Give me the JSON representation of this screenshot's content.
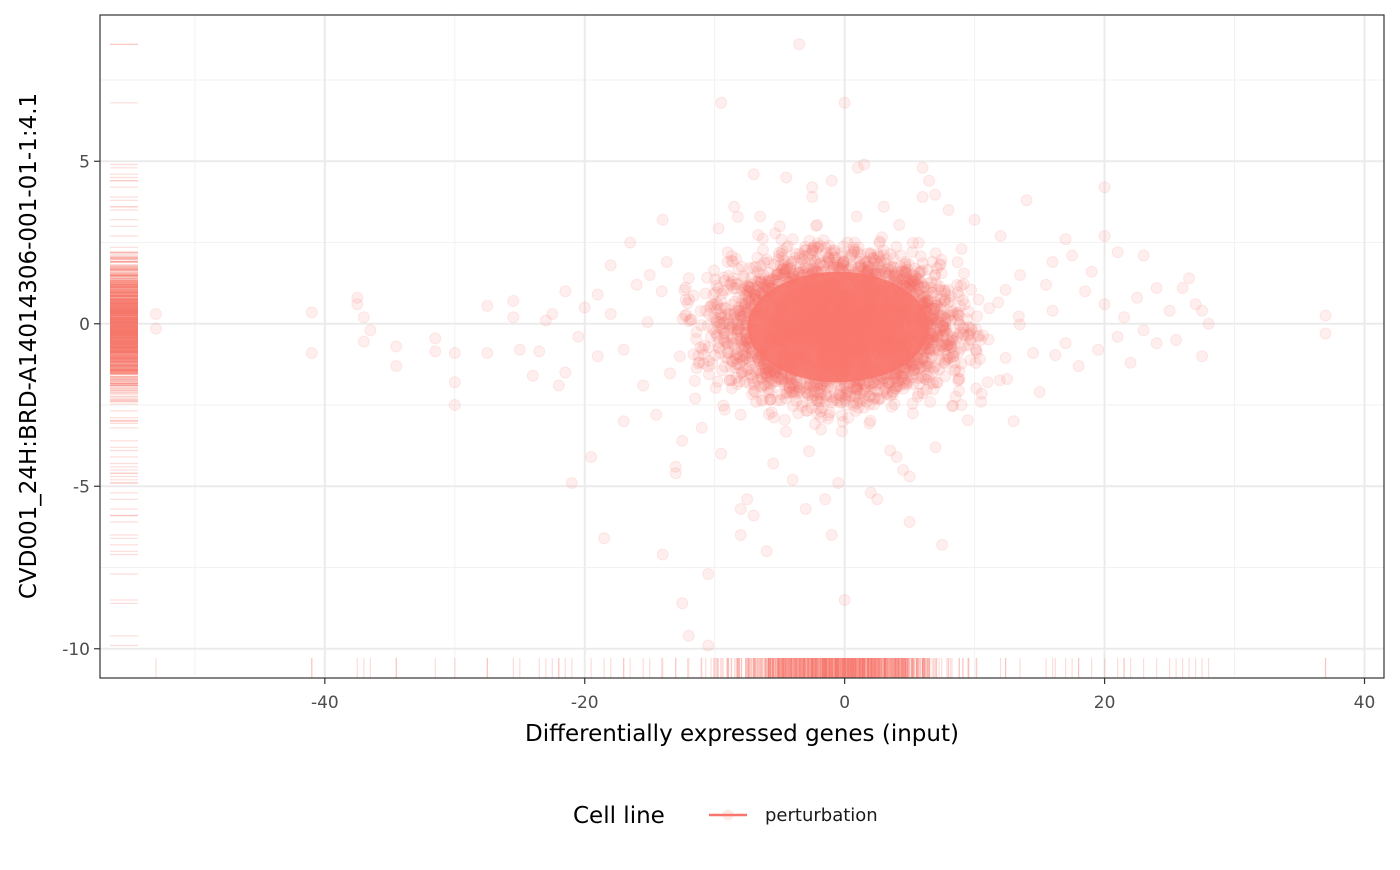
{
  "chart_data": {
    "type": "scatter",
    "title": "",
    "xlabel": "Differentially expressed genes (input)",
    "ylabel": "CVD001_24H:BRD-A14014306-001-01-1:4.1",
    "xlim": [
      -57.3,
      41.5
    ],
    "ylim": [
      -10.9,
      9.5
    ],
    "x_ticks": [
      -40,
      -20,
      0,
      20,
      40
    ],
    "x_tick_labels": [
      "-40",
      "-20",
      "0",
      "20",
      "40"
    ],
    "x_minor_ticks": [
      -50,
      -30,
      -10,
      10,
      30
    ],
    "y_ticks": [
      -10,
      -5,
      0,
      5
    ],
    "y_tick_labels": [
      "-10",
      "-5",
      "0",
      "5"
    ],
    "y_minor_ticks": [
      -7.5,
      -2.5,
      2.5,
      7.5
    ],
    "grid": true,
    "rug": true,
    "point_alpha": 0.12,
    "legend": {
      "title": "Cell line",
      "position": "bottom",
      "entries": [
        {
          "label": "perturbation",
          "color": "#F8766D"
        }
      ]
    },
    "series": [
      {
        "name": "perturbation",
        "color": "#F8766D",
        "points": [
          [
            -53,
            0.3
          ],
          [
            -53,
            -0.15
          ],
          [
            -41,
            0.35
          ],
          [
            -41,
            -0.9
          ],
          [
            -37.5,
            0.8
          ],
          [
            -37.5,
            0.6
          ],
          [
            -37,
            0.2
          ],
          [
            -36.5,
            -0.2
          ],
          [
            -37,
            -0.55
          ],
          [
            -34.5,
            -0.7
          ],
          [
            -34.5,
            -1.3
          ],
          [
            -31.5,
            -0.45
          ],
          [
            -31.5,
            -0.85
          ],
          [
            -30,
            -0.9
          ],
          [
            -30,
            -1.8
          ],
          [
            -30,
            -2.5
          ],
          [
            -27.5,
            0.55
          ],
          [
            -27.5,
            -0.9
          ],
          [
            -25.5,
            0.7
          ],
          [
            -25.5,
            0.2
          ],
          [
            -25,
            -0.8
          ],
          [
            -24,
            -1.6
          ],
          [
            -23.5,
            -0.85
          ],
          [
            -23,
            0.1
          ],
          [
            -22,
            -1.9
          ],
          [
            -21.5,
            -1.5
          ],
          [
            -21.5,
            1.0
          ],
          [
            -21,
            -4.9
          ],
          [
            -19.5,
            -4.1
          ],
          [
            -18.5,
            -6.6
          ],
          [
            -18,
            1.8
          ],
          [
            -17,
            -3.0
          ],
          [
            -16.5,
            2.5
          ],
          [
            -15,
            1.5
          ],
          [
            -14.5,
            -2.8
          ],
          [
            -14,
            3.2
          ],
          [
            -14,
            -7.1
          ],
          [
            -13,
            -4.4
          ],
          [
            -13,
            -4.6
          ],
          [
            -12.5,
            -8.6
          ],
          [
            -12,
            -9.6
          ],
          [
            -11,
            -3.2
          ],
          [
            -10.5,
            -7.7
          ],
          [
            -10.5,
            -9.9
          ],
          [
            -9.5,
            6.8
          ],
          [
            -9,
            1.9
          ],
          [
            -8.5,
            3.6
          ],
          [
            -9.5,
            -4.0
          ],
          [
            -8,
            -5.7
          ],
          [
            -8,
            -6.5
          ],
          [
            -7.5,
            -5.4
          ],
          [
            -7,
            4.6
          ],
          [
            -7,
            -5.9
          ],
          [
            -6,
            -7.0
          ],
          [
            -5.5,
            -4.3
          ],
          [
            -5,
            3.0
          ],
          [
            -4.5,
            4.5
          ],
          [
            -4,
            2.6
          ],
          [
            -4,
            -4.8
          ],
          [
            -3.5,
            8.6
          ],
          [
            -3,
            -5.7
          ],
          [
            -2.5,
            4.2
          ],
          [
            -2.5,
            3.9
          ],
          [
            -1.5,
            -5.4
          ],
          [
            -1,
            -6.5
          ],
          [
            -1,
            4.4
          ],
          [
            -0.5,
            -4.9
          ],
          [
            0,
            6.8
          ],
          [
            0,
            -8.5
          ],
          [
            1,
            4.8
          ],
          [
            1.5,
            4.9
          ],
          [
            2,
            -5.2
          ],
          [
            2.5,
            -5.4
          ],
          [
            3,
            3.6
          ],
          [
            3.5,
            -3.9
          ],
          [
            4,
            -4.1
          ],
          [
            4.5,
            -4.5
          ],
          [
            5,
            -6.1
          ],
          [
            5,
            -4.7
          ],
          [
            6,
            4.8
          ],
          [
            6.5,
            4.4
          ],
          [
            7,
            -3.8
          ],
          [
            7.5,
            -6.8
          ],
          [
            8,
            3.5
          ],
          [
            9,
            -2.5
          ],
          [
            10,
            3.2
          ],
          [
            10.5,
            -2.4
          ],
          [
            12,
            2.7
          ],
          [
            13,
            -3.0
          ],
          [
            14,
            3.8
          ],
          [
            15,
            -2.1
          ],
          [
            16,
            1.9
          ],
          [
            17,
            2.6
          ],
          [
            17.5,
            2.1
          ],
          [
            18,
            -1.3
          ],
          [
            19,
            1.6
          ],
          [
            19.5,
            -0.8
          ],
          [
            20,
            0.6
          ],
          [
            20,
            2.7
          ],
          [
            20,
            4.2
          ],
          [
            21,
            2.2
          ],
          [
            21.5,
            0.2
          ],
          [
            22,
            -1.2
          ],
          [
            22.5,
            0.8
          ],
          [
            23,
            -0.2
          ],
          [
            23,
            2.1
          ],
          [
            24,
            1.1
          ],
          [
            25,
            0.4
          ],
          [
            25.5,
            -0.5
          ],
          [
            26,
            1.1
          ],
          [
            26.5,
            1.4
          ],
          [
            27,
            0.6
          ],
          [
            27.5,
            0.4
          ],
          [
            27.5,
            -1.0
          ],
          [
            28,
            0.0
          ],
          [
            37,
            0.25
          ],
          [
            37,
            -0.3
          ],
          [
            -20,
            0.5
          ],
          [
            -19,
            -1.0
          ],
          [
            -18,
            0.3
          ],
          [
            -17,
            -0.8
          ],
          [
            -16,
            1.2
          ],
          [
            -15.5,
            -1.9
          ],
          [
            -12,
            1.4
          ],
          [
            -11.5,
            -2.3
          ],
          [
            -9,
            2.2
          ],
          [
            -8,
            -2.8
          ],
          [
            9,
            2.3
          ],
          [
            11,
            -1.8
          ],
          [
            13.5,
            1.5
          ],
          [
            14.5,
            -0.9
          ],
          [
            16,
            0.4
          ],
          [
            17,
            -0.6
          ],
          [
            18.5,
            1.0
          ],
          [
            21,
            -0.4
          ],
          [
            24,
            -0.6
          ],
          [
            -22.5,
            0.3
          ],
          [
            -20.5,
            -0.4
          ],
          [
            -19,
            0.9
          ],
          [
            -12.5,
            -3.6
          ],
          [
            -6.5,
            3.3
          ],
          [
            6,
            3.9
          ],
          [
            12.5,
            -1.7
          ],
          [
            15.5,
            1.2
          ]
        ],
        "core": {
          "center": [
            -0.5,
            -0.1
          ],
          "sd": [
            3.9,
            0.95
          ],
          "core_radius": [
            7.0,
            1.7
          ],
          "count": 6500
        },
        "x_rug_extra": [
          -53,
          -41,
          -37.5,
          -37,
          -36.5,
          -34.5,
          -31.5,
          -30,
          -27.5,
          -25.5,
          -25,
          -23.5,
          -23,
          -22,
          -21.5,
          -21,
          -19.5,
          -18.5,
          -18,
          -17,
          -16.5,
          -15,
          -14,
          -13,
          -12,
          -11,
          -10,
          16,
          17,
          17.5,
          18,
          19,
          20,
          21,
          21.5,
          22,
          23,
          24,
          25,
          26,
          26.5,
          27,
          27.5,
          28,
          37
        ],
        "y_rug_extra": [
          8.6,
          6.8,
          4.9,
          4.8,
          4.6,
          4.5,
          4.4,
          4.2,
          3.9,
          3.8,
          3.6,
          3.5,
          3.2,
          3.0,
          -3.0,
          -3.2,
          -3.6,
          -3.8,
          -3.9,
          -4.1,
          -4.3,
          -4.4,
          -4.5,
          -4.6,
          -4.7,
          -4.8,
          -4.9,
          -5.2,
          -5.4,
          -5.7,
          -5.9,
          -6.1,
          -6.5,
          -6.6,
          -6.8,
          -7.0,
          -7.1,
          -7.7,
          -8.5,
          -8.6,
          -9.6,
          -9.9
        ]
      }
    ]
  }
}
